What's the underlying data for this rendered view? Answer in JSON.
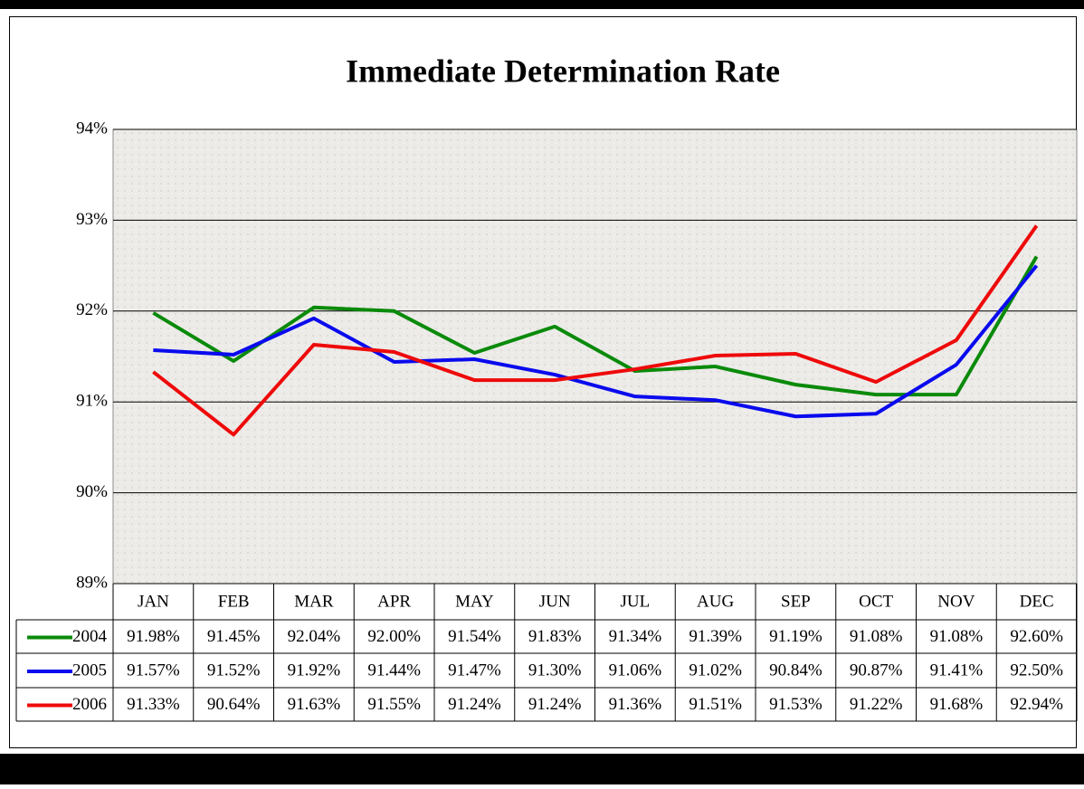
{
  "chart_data": {
    "type": "line",
    "title": "Immediate Determination Rate",
    "categories": [
      "JAN",
      "FEB",
      "MAR",
      "APR",
      "MAY",
      "JUN",
      "JUL",
      "AUG",
      "SEP",
      "OCT",
      "NOV",
      "DEC"
    ],
    "series": [
      {
        "name": "2004",
        "color": "#0a8a0a",
        "values": [
          91.98,
          91.45,
          92.04,
          92.0,
          91.54,
          91.83,
          91.34,
          91.39,
          91.19,
          91.08,
          91.08,
          92.6
        ],
        "value_labels": [
          "91.98%",
          "91.45%",
          "92.04%",
          "92.00%",
          "91.54%",
          "91.83%",
          "91.34%",
          "91.39%",
          "91.19%",
          "91.08%",
          "91.08%",
          "92.60%"
        ]
      },
      {
        "name": "2005",
        "color": "#0a0aee",
        "values": [
          91.57,
          91.52,
          91.92,
          91.44,
          91.47,
          91.3,
          91.06,
          91.02,
          90.84,
          90.87,
          91.41,
          92.5
        ],
        "value_labels": [
          "91.57%",
          "91.52%",
          "91.92%",
          "91.44%",
          "91.47%",
          "91.30%",
          "91.06%",
          "91.02%",
          "90.84%",
          "90.87%",
          "91.41%",
          "92.50%"
        ]
      },
      {
        "name": "2006",
        "color": "#ee0a0a",
        "values": [
          91.33,
          90.64,
          91.63,
          91.55,
          91.24,
          91.24,
          91.36,
          91.51,
          91.53,
          91.22,
          91.68,
          92.94
        ],
        "value_labels": [
          "91.33%",
          "90.64%",
          "91.63%",
          "91.55%",
          "91.24%",
          "91.24%",
          "91.36%",
          "91.51%",
          "91.53%",
          "91.22%",
          "91.68%",
          "92.94%"
        ]
      }
    ],
    "ylim": [
      89,
      94
    ],
    "yticks": [
      {
        "value": 89,
        "label": "89%"
      },
      {
        "value": 90,
        "label": "90%"
      },
      {
        "value": 91,
        "label": "91%"
      },
      {
        "value": 92,
        "label": "92%"
      },
      {
        "value": 93,
        "label": "93%"
      },
      {
        "value": 94,
        "label": "94%"
      }
    ],
    "grid": true
  }
}
